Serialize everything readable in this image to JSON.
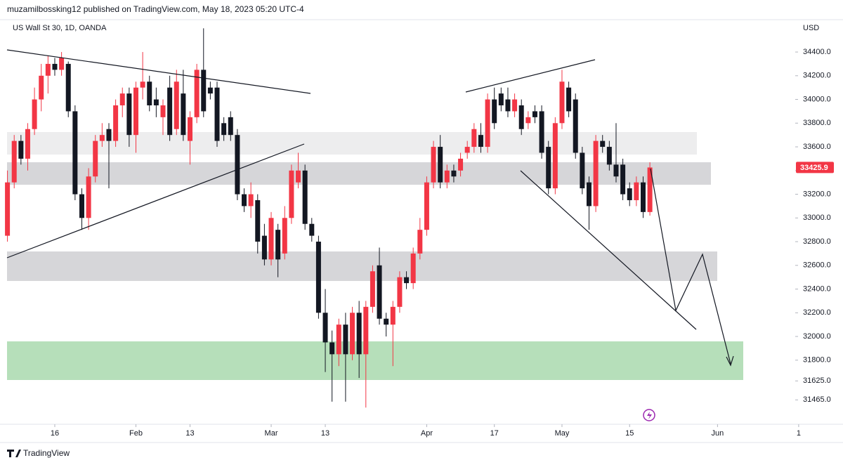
{
  "header": "muzamilbossking12 published on TradingView.com, May 18, 2023 05:20 UTC-4",
  "brand": "TradingView",
  "chart_data": {
    "type": "candlestick",
    "title": "US Wall St 30, 1D, OANDA",
    "currency": "USD",
    "up_color": "#f23645",
    "down_color": "#131722",
    "last_price": 33425.9,
    "last_price_color": "#f23645",
    "xlim": [
      -1.1,
      119.4
    ],
    "xticks": [
      {
        "value": 7,
        "label": "16"
      },
      {
        "value": 19,
        "label": "Feb"
      },
      {
        "value": 27,
        "label": "13"
      },
      {
        "value": 39,
        "label": "Mar"
      },
      {
        "value": 47,
        "label": "13"
      },
      {
        "value": 62,
        "label": "Apr"
      },
      {
        "value": 72,
        "label": "17"
      },
      {
        "value": 82,
        "label": "May"
      },
      {
        "value": 92,
        "label": "15"
      },
      {
        "value": 105,
        "label": "Jun"
      },
      {
        "value": 117,
        "label": "1"
      }
    ],
    "ylim": [
      31283,
      34673
    ],
    "yticks": [
      {
        "value": 34400,
        "label": "34400.0"
      },
      {
        "value": 34200,
        "label": "34200.0"
      },
      {
        "value": 34000,
        "label": "34000.0"
      },
      {
        "value": 33800,
        "label": "33800.0"
      },
      {
        "value": 33600,
        "label": "33600.0"
      },
      {
        "value": 33400,
        "label": "33400.0"
      },
      {
        "value": 33200,
        "label": "33200.0"
      },
      {
        "value": 33000,
        "label": "33000.0"
      },
      {
        "value": 32800,
        "label": "32800.0"
      },
      {
        "value": 32600,
        "label": "32600.0"
      },
      {
        "value": 32400,
        "label": "32400.0"
      },
      {
        "value": 32200,
        "label": "32200.0"
      },
      {
        "value": 32000,
        "label": "32000.0"
      },
      {
        "value": 31800,
        "label": "31800.0"
      },
      {
        "value": 31625,
        "label": "31625.0"
      },
      {
        "value": 31465,
        "label": "31465.0"
      }
    ],
    "open": [
      32850,
      33300,
      33650,
      33500,
      33750,
      34000,
      34200,
      34300,
      34250,
      34300,
      33900,
      33200,
      33000,
      33350,
      33650,
      33750,
      33650,
      33950,
      34050,
      33700,
      34100,
      34150,
      34000,
      33850,
      34100,
      33750,
      34050,
      33650,
      33850,
      34250,
      34100,
      34100,
      33800,
      33850,
      33700,
      33200,
      33100,
      33150,
      32850,
      32650,
      32900,
      32700,
      33000,
      33300,
      33400,
      32950,
      32800,
      32200,
      31950,
      31850,
      32100,
      31850,
      32200,
      31850,
      32250,
      32600,
      32150,
      32100,
      32250,
      32500,
      32450,
      32700,
      32900,
      33300,
      33600,
      33300,
      33400,
      33400,
      33550,
      33600,
      33700,
      33600,
      34000,
      34050,
      34000,
      33900,
      33950,
      33800,
      33900,
      33900,
      33600,
      33250,
      33800,
      34100,
      34000,
      33550,
      33300,
      33100,
      33650,
      33600,
      33450,
      33450,
      33250,
      33150,
      33300,
      33050
    ],
    "high": [
      33400,
      33700,
      33700,
      33800,
      34100,
      34300,
      34370,
      34350,
      34400,
      34320,
      33950,
      33250,
      33420,
      33700,
      33800,
      33800,
      34000,
      34100,
      34100,
      34150,
      34400,
      34200,
      34100,
      34000,
      34200,
      34250,
      34250,
      33900,
      34300,
      34600,
      34150,
      34150,
      33850,
      33900,
      33750,
      33250,
      33300,
      33200,
      32950,
      33050,
      32950,
      33100,
      33450,
      33550,
      33450,
      33000,
      32850,
      32400,
      32050,
      32150,
      32200,
      32250,
      32300,
      32300,
      32600,
      32750,
      32200,
      32300,
      32550,
      32550,
      32750,
      33000,
      33350,
      33650,
      33700,
      33450,
      33450,
      33550,
      33650,
      33800,
      33800,
      34050,
      34100,
      34100,
      34100,
      34050,
      34000,
      33900,
      33950,
      33950,
      33650,
      33850,
      34250,
      34150,
      34050,
      33600,
      33350,
      33700,
      33700,
      33650,
      33800,
      33500,
      33300,
      33350,
      33350,
      33470
    ],
    "low": [
      32800,
      33250,
      33450,
      33400,
      33700,
      33900,
      34050,
      34200,
      34200,
      33850,
      33150,
      32900,
      32900,
      33300,
      33600,
      33250,
      33600,
      33850,
      33600,
      33550,
      34000,
      33900,
      33850,
      33700,
      33650,
      33700,
      33650,
      33450,
      33800,
      33850,
      34000,
      33600,
      33650,
      33650,
      33150,
      33050,
      33000,
      32700,
      32600,
      32600,
      32500,
      32650,
      32950,
      33250,
      32900,
      32800,
      32150,
      31700,
      31450,
      31750,
      31450,
      31800,
      31650,
      31400,
      32200,
      32100,
      32000,
      31750,
      32200,
      32400,
      32400,
      32650,
      32850,
      33250,
      33250,
      33250,
      33300,
      33350,
      33500,
      33550,
      33550,
      33550,
      33750,
      33900,
      33850,
      33850,
      33700,
      33750,
      33800,
      33500,
      33200,
      33200,
      33750,
      33850,
      33500,
      33200,
      32900,
      33050,
      33550,
      33400,
      33300,
      33150,
      33100,
      33100,
      33000,
      33020
    ],
    "close": [
      33300,
      33650,
      33500,
      33750,
      34000,
      34200,
      34300,
      34250,
      34350,
      33900,
      33200,
      33000,
      33350,
      33650,
      33700,
      33650,
      33950,
      34050,
      33700,
      34100,
      34150,
      33950,
      33950,
      33950,
      33700,
      34150,
      33700,
      33850,
      34250,
      33900,
      34050,
      33650,
      33700,
      33700,
      33200,
      33100,
      33200,
      32800,
      32650,
      33000,
      32650,
      33000,
      33400,
      33400,
      32950,
      32850,
      32200,
      31950,
      31850,
      32100,
      31850,
      32200,
      31850,
      32250,
      32550,
      32150,
      32100,
      32250,
      32500,
      32450,
      32700,
      32900,
      33300,
      33600,
      33300,
      33400,
      33350,
      33500,
      33600,
      33750,
      33600,
      34000,
      33800,
      33950,
      33900,
      34000,
      33750,
      33850,
      33850,
      33550,
      33250,
      33800,
      34150,
      33900,
      33550,
      33250,
      33100,
      33650,
      33600,
      33450,
      33350,
      33200,
      33150,
      33300,
      33050,
      33425.9
    ]
  }
}
